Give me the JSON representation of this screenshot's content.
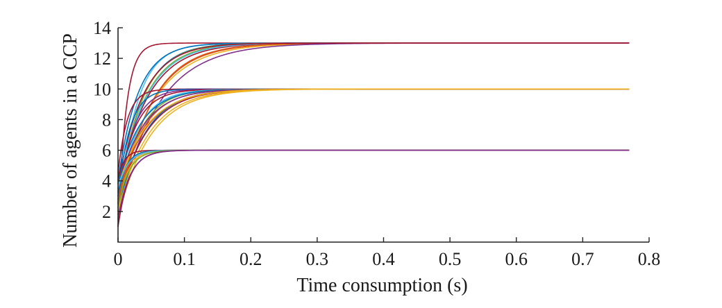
{
  "chart_data": {
    "type": "line",
    "title": "",
    "xlabel": "Time consumption (s)",
    "ylabel": "Number of agents in a CCP",
    "xlim": [
      0,
      0.8
    ],
    "ylim": [
      0,
      14
    ],
    "xticks": [
      0,
      0.1,
      0.2,
      0.3,
      0.4,
      0.5,
      0.6,
      0.7,
      0.8
    ],
    "xtick_labels": [
      "0",
      "0.1",
      "0.2",
      "0.3",
      "0.4",
      "0.5",
      "0.6",
      "0.7",
      "0.8"
    ],
    "yticks": [
      2,
      4,
      6,
      8,
      10,
      12,
      14
    ],
    "ytick_labels": [
      "2",
      "4",
      "6",
      "8",
      "10",
      "12",
      "14"
    ],
    "grid": false,
    "legend": "none",
    "x_end": 0.77,
    "palette": [
      "#0072bd",
      "#d95319",
      "#edb120",
      "#7e2f8e",
      "#77ac30",
      "#4dbeee",
      "#a2142f"
    ],
    "series": [
      {
        "color": "#a2142f",
        "start": 1.0,
        "final": 13,
        "tau": 0.012
      },
      {
        "color": "#4dbeee",
        "start": 2.0,
        "final": 13,
        "tau": 0.028
      },
      {
        "color": "#0072bd",
        "start": 2.5,
        "final": 13,
        "tau": 0.035
      },
      {
        "color": "#77ac30",
        "start": 3.0,
        "final": 13,
        "tau": 0.04
      },
      {
        "color": "#a2142f",
        "start": 3.5,
        "final": 13,
        "tau": 0.045
      },
      {
        "color": "#d95319",
        "start": 2.2,
        "final": 13,
        "tau": 0.05
      },
      {
        "color": "#edb120",
        "start": 3.0,
        "final": 13,
        "tau": 0.055
      },
      {
        "color": "#0072bd",
        "start": 4.0,
        "final": 13,
        "tau": 0.03
      },
      {
        "color": "#77ac30",
        "start": 2.8,
        "final": 13,
        "tau": 0.036
      },
      {
        "color": "#4dbeee",
        "start": 3.3,
        "final": 13,
        "tau": 0.042
      },
      {
        "color": "#d95319",
        "start": 1.8,
        "final": 13,
        "tau": 0.048
      },
      {
        "color": "#7e2f8e",
        "start": 2.0,
        "final": 13,
        "tau": 0.06
      },
      {
        "color": "#a2142f",
        "start": 3.8,
        "final": 13,
        "tau": 0.038
      },
      {
        "color": "#a2142f",
        "start": 4.5,
        "final": 10,
        "tau": 0.014
      },
      {
        "color": "#0072bd",
        "start": 3.0,
        "final": 10,
        "tau": 0.018
      },
      {
        "color": "#7e2f8e",
        "start": 2.5,
        "final": 10,
        "tau": 0.022
      },
      {
        "color": "#a2142f",
        "start": 3.2,
        "final": 10,
        "tau": 0.026
      },
      {
        "color": "#4dbeee",
        "start": 2.8,
        "final": 10,
        "tau": 0.03
      },
      {
        "color": "#77ac30",
        "start": 2.2,
        "final": 10,
        "tau": 0.032
      },
      {
        "color": "#0072bd",
        "start": 3.8,
        "final": 10,
        "tau": 0.034
      },
      {
        "color": "#d95319",
        "start": 2.6,
        "final": 10,
        "tau": 0.036
      },
      {
        "color": "#7e2f8e",
        "start": 3.5,
        "final": 10,
        "tau": 0.038
      },
      {
        "color": "#0072bd",
        "start": 2.0,
        "final": 10,
        "tau": 0.04
      },
      {
        "color": "#d95319",
        "start": 3.0,
        "final": 10,
        "tau": 0.042
      },
      {
        "color": "#a2142f",
        "start": 2.4,
        "final": 10,
        "tau": 0.043
      },
      {
        "color": "#edb120",
        "start": 3.6,
        "final": 10,
        "tau": 0.044
      },
      {
        "color": "#edb120",
        "start": 2.0,
        "final": 10,
        "tau": 0.046
      },
      {
        "color": "#edb120",
        "start": 1.6,
        "final": 10,
        "tau": 0.048
      },
      {
        "color": "#a2142f",
        "start": 4.2,
        "final": 6,
        "tau": 0.01
      },
      {
        "color": "#0072bd",
        "start": 3.0,
        "final": 6,
        "tau": 0.012
      },
      {
        "color": "#d95319",
        "start": 2.5,
        "final": 6,
        "tau": 0.013
      },
      {
        "color": "#edb120",
        "start": 2.0,
        "final": 6,
        "tau": 0.014
      },
      {
        "color": "#4dbeee",
        "start": 3.5,
        "final": 6,
        "tau": 0.015
      },
      {
        "color": "#77ac30",
        "start": 2.2,
        "final": 6,
        "tau": 0.016
      },
      {
        "color": "#a2142f",
        "start": 1.0,
        "final": 6,
        "tau": 0.017
      },
      {
        "color": "#7e2f8e",
        "start": 1.5,
        "final": 6,
        "tau": 0.018
      }
    ]
  }
}
